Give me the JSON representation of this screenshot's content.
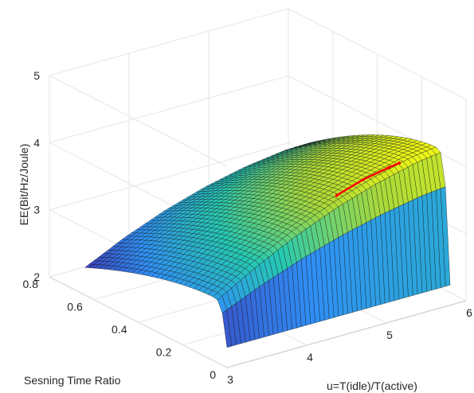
{
  "chart_data": {
    "type": "surface",
    "title": "",
    "xlabel": "u=T(idle)/T(active)",
    "ylabel": "Sesning Time Ratio",
    "zlabel": "EE(Bit/Hz/Joule)",
    "x_ticks": [
      "3",
      "4",
      "5",
      "6"
    ],
    "y_ticks": [
      "0",
      "0.2",
      "0.4",
      "0.6",
      "0.8"
    ],
    "z_ticks": [
      "2",
      "3",
      "4",
      "5"
    ],
    "xlim": [
      3,
      6
    ],
    "ylim": [
      0,
      0.8
    ],
    "zlim": [
      2,
      5
    ],
    "colormap": [
      "#3e26a8",
      "#2f8ff5",
      "#26c9b2",
      "#a9d93a",
      "#f9fb0e"
    ],
    "grid": true,
    "surface_profile": {
      "u": [
        3.0,
        3.5,
        4.0,
        4.5,
        5.0,
        5.5,
        5.8
      ],
      "ee_at_optimal_tau": [
        2.95,
        3.3,
        3.6,
        3.85,
        4.05,
        4.2,
        4.25
      ]
    },
    "optimal_curve": {
      "color": "#ff0000",
      "u": [
        4.6,
        4.9,
        5.2,
        5.3
      ],
      "tau": [
        0.08,
        0.07,
        0.06,
        0.05
      ],
      "ee": [
        3.9,
        4.05,
        4.15,
        4.2
      ]
    }
  }
}
